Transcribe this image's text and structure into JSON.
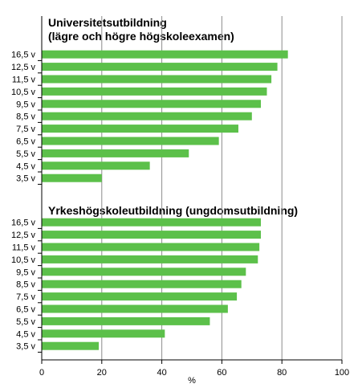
{
  "chart_data": [
    {
      "type": "bar",
      "orientation": "horizontal",
      "title": "Universitetsutbildning",
      "subtitle": "(lägre och högre högskoleexamen)",
      "categories": [
        "16,5 v",
        "12,5 v",
        "11,5 v",
        "10,5 v",
        "9,5 v",
        "8,5 v",
        "7,5 v",
        "6,5 v",
        "5,5 v",
        "4,5 v",
        "3,5 v"
      ],
      "values": [
        82,
        78.5,
        76.5,
        75,
        73,
        70,
        65.5,
        59,
        49,
        36,
        20
      ]
    },
    {
      "type": "bar",
      "orientation": "horizontal",
      "title": "Yrkeshögskoleutbildning (ungdomsutbildning)",
      "categories": [
        "16,5 v",
        "12,5 v",
        "11,5 v",
        "10,5 v",
        "9,5 v",
        "8,5 v",
        "7,5 v",
        "6,5 v",
        "5,5 v",
        "4,5 v",
        "3,5 v"
      ],
      "values": [
        73,
        73,
        72.5,
        72,
        68,
        66.5,
        65,
        62,
        56,
        41,
        19
      ]
    }
  ],
  "axis": {
    "xlim": [
      0,
      100
    ],
    "ticks": [
      "0",
      "20",
      "40",
      "60",
      "80",
      "100"
    ],
    "xlabel": "%",
    "grid": "vertical"
  },
  "colors": {
    "bar": "#5cc04a",
    "grid": "#8c8c8c",
    "axis": "#000000"
  }
}
